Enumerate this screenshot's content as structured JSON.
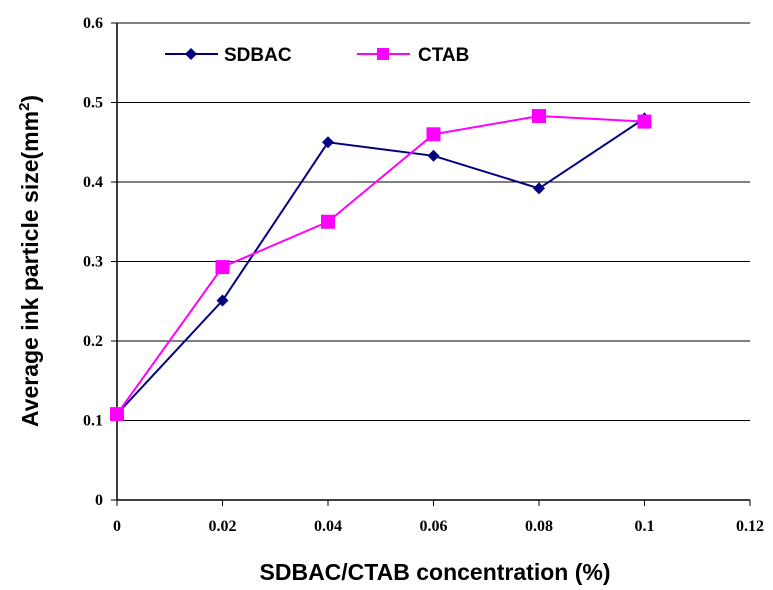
{
  "chart_data": {
    "type": "line",
    "title": "",
    "xlabel": "SDBAC/CTAB concentration (%)",
    "ylabel": "Average ink particle size(mm",
    "ylabel_sup": "2",
    "ylabel_close": ")",
    "xlim": [
      0,
      0.12
    ],
    "ylim": [
      0,
      0.6
    ],
    "xticks": [
      "0",
      "0.02",
      "0.04",
      "0.06",
      "0.08",
      "0.1",
      "0.12"
    ],
    "yticks": [
      "0",
      "0.1",
      "0.2",
      "0.3",
      "0.4",
      "0.5",
      "0.6"
    ],
    "grid": "horizontal",
    "legend_position": "top-left",
    "x": [
      0,
      0.02,
      0.04,
      0.06,
      0.08,
      0.1
    ],
    "series": [
      {
        "name": "SDBAC",
        "color": "#000080",
        "marker": "diamond",
        "values": [
          0.108,
          0.251,
          0.45,
          0.433,
          0.392,
          0.48
        ]
      },
      {
        "name": "CTAB",
        "color": "#FF00FF",
        "marker": "square",
        "values": [
          0.108,
          0.293,
          0.35,
          0.46,
          0.483,
          0.476
        ]
      }
    ]
  }
}
